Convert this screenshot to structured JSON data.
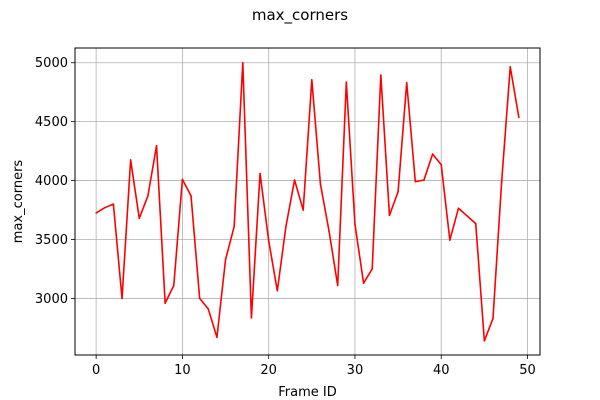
{
  "chart_data": {
    "type": "line",
    "title": "max_corners",
    "xlabel": "Frame ID",
    "ylabel": "max_corners",
    "xlim": [
      -2.45,
      51.45
    ],
    "ylim": [
      2520,
      5125
    ],
    "xticks": [
      0,
      10,
      20,
      30,
      40,
      50
    ],
    "yticks": [
      3000,
      3500,
      4000,
      4500,
      5000
    ],
    "grid": true,
    "series": [
      {
        "color": "#ff0000",
        "x": [
          0,
          1,
          2,
          3,
          4,
          5,
          6,
          7,
          8,
          9,
          10,
          11,
          12,
          13,
          14,
          15,
          16,
          17,
          18,
          19,
          20,
          21,
          22,
          23,
          24,
          25,
          26,
          27,
          28,
          29,
          30,
          31,
          32,
          33,
          34,
          35,
          36,
          37,
          38,
          39,
          40,
          41,
          42,
          43,
          44,
          45,
          46,
          47,
          48,
          49
        ],
        "y": [
          3725,
          3770,
          3800,
          3000,
          4175,
          3680,
          3870,
          4295,
          2960,
          3110,
          4010,
          3870,
          3000,
          2910,
          2670,
          3330,
          3610,
          5000,
          2835,
          4060,
          3490,
          3065,
          3610,
          4005,
          3750,
          4855,
          3970,
          3570,
          3110,
          4835,
          3630,
          3130,
          3250,
          4895,
          3705,
          3905,
          4830,
          3990,
          4005,
          4225,
          4135,
          3495,
          3765,
          3700,
          3635,
          2640,
          2830,
          3985,
          4965,
          4535
        ]
      }
    ]
  }
}
